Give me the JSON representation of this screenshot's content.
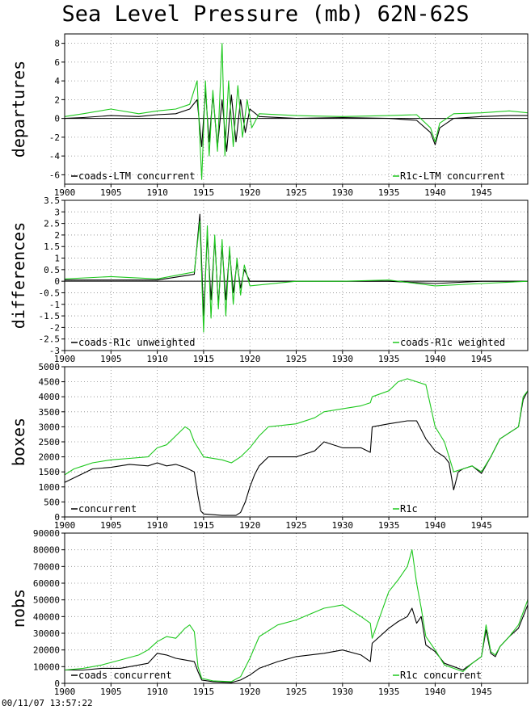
{
  "title": "Sea Level Pressure (mb) 62N-62S",
  "timestamp": "00/11/07 13:57:22",
  "colors": {
    "black": "#000000",
    "green": "#1ec81e",
    "grid": "#888888"
  },
  "chart_data": [
    {
      "type": "line",
      "ylabel": "departures",
      "xlim": [
        1900,
        1950
      ],
      "ylim": [
        -7,
        9
      ],
      "yticks": [
        -6,
        -4,
        -2,
        0,
        2,
        4,
        6,
        8
      ],
      "ytick_labels": [
        "-6",
        "-4",
        "-2",
        "0",
        "2",
        "4",
        "6",
        "8"
      ],
      "xticks": [
        1900,
        1905,
        1910,
        1915,
        1920,
        1925,
        1930,
        1935,
        1940,
        1945
      ],
      "grid": true,
      "zero_line": true,
      "legend": [
        {
          "text": "coads-LTM concurrent",
          "position": "bottom-left",
          "color": "#000000"
        },
        {
          "text": "R1c-LTM concurrent",
          "position": "bottom-right",
          "color": "#1ec81e"
        }
      ],
      "series": [
        {
          "name": "coads-LTM concurrent",
          "color": "#000000",
          "x": [
            1900,
            1902,
            1905,
            1908,
            1910,
            1912,
            1913.5,
            1914.3,
            1914.8,
            1915.2,
            1915.6,
            1916.0,
            1916.5,
            1917.0,
            1917.5,
            1918.0,
            1918.5,
            1919.0,
            1919.5,
            1920.0,
            1921,
            1925,
            1930,
            1935,
            1938,
            1939.5,
            1940.0,
            1940.5,
            1942,
            1945,
            1948,
            1950
          ],
          "y": [
            0,
            0.1,
            0.3,
            0.2,
            0.4,
            0.5,
            1.0,
            2.0,
            -3.0,
            3.0,
            -2.5,
            2.5,
            -3.0,
            2.0,
            -3.5,
            2.5,
            -2.5,
            2.0,
            -1.5,
            1.0,
            0.2,
            0.0,
            0.1,
            0.0,
            -0.2,
            -1.5,
            -2.8,
            -1.0,
            0.0,
            0.2,
            0.3,
            0.3
          ]
        },
        {
          "name": "R1c-LTM concurrent",
          "color": "#1ec81e",
          "x": [
            1900,
            1902,
            1905,
            1908,
            1910,
            1912,
            1913.5,
            1914.3,
            1914.8,
            1915.2,
            1915.6,
            1916.0,
            1916.5,
            1917.0,
            1917.3,
            1917.7,
            1918.2,
            1918.7,
            1919.2,
            1919.7,
            1920.2,
            1921,
            1925,
            1930,
            1935,
            1938,
            1939.5,
            1940.0,
            1940.5,
            1942,
            1945,
            1948,
            1950
          ],
          "y": [
            0.2,
            0.5,
            1.0,
            0.5,
            0.8,
            1.0,
            1.5,
            4.0,
            -6.5,
            4.0,
            -4.0,
            3.0,
            -3.5,
            8.0,
            -4.0,
            4.0,
            -3.0,
            3.5,
            -2.0,
            2.0,
            -1.0,
            0.5,
            0.3,
            0.2,
            0.3,
            0.4,
            -1.0,
            -2.5,
            -0.5,
            0.5,
            0.6,
            0.8,
            0.6
          ]
        }
      ]
    },
    {
      "type": "line",
      "ylabel": "differences",
      "xlim": [
        1900,
        1950
      ],
      "ylim": [
        -3,
        3.5
      ],
      "yticks": [
        -3,
        -2.5,
        -2,
        -1.5,
        -1,
        -0.5,
        0,
        0.5,
        1,
        1.5,
        2,
        2.5,
        3,
        3.5
      ],
      "ytick_labels": [
        "-3",
        "-2.5",
        "-2",
        "-1.5",
        "-1",
        "-0.5",
        "0",
        "0.5",
        "1",
        "1.5",
        "2",
        "2.5",
        "3",
        "3.5"
      ],
      "xticks": [
        1900,
        1905,
        1910,
        1915,
        1920,
        1925,
        1930,
        1935,
        1940,
        1945
      ],
      "grid": true,
      "zero_line": true,
      "legend": [
        {
          "text": "coads-R1c unweighted",
          "position": "bottom-left",
          "color": "#000000"
        },
        {
          "text": "coads-R1c weighted",
          "position": "bottom-right",
          "color": "#1ec81e"
        }
      ],
      "series": [
        {
          "name": "coads-R1c unweighted",
          "color": "#000000",
          "x": [
            1900,
            1905,
            1910,
            1914.0,
            1914.6,
            1915.0,
            1915.4,
            1915.8,
            1916.2,
            1916.6,
            1917.0,
            1917.4,
            1917.8,
            1918.2,
            1918.6,
            1919.0,
            1919.4,
            1920,
            1925,
            1930,
            1935,
            1940,
            1945,
            1950
          ],
          "y": [
            0.05,
            0.05,
            0.05,
            0.3,
            2.9,
            -1.5,
            2.0,
            -0.8,
            1.8,
            -1.0,
            1.5,
            -0.8,
            1.3,
            -0.5,
            0.8,
            -0.3,
            0.5,
            0.0,
            0.0,
            0.0,
            0.0,
            -0.1,
            0.0,
            0.0
          ]
        },
        {
          "name": "coads-R1c weighted",
          "color": "#1ec81e",
          "x": [
            1900,
            1905,
            1910,
            1914.0,
            1914.6,
            1915.0,
            1915.4,
            1915.8,
            1916.2,
            1916.6,
            1917.0,
            1917.4,
            1917.8,
            1918.2,
            1918.6,
            1919.0,
            1919.4,
            1920,
            1925,
            1930,
            1935,
            1938,
            1940,
            1945,
            1950
          ],
          "y": [
            0.1,
            0.2,
            0.1,
            0.4,
            2.6,
            -2.2,
            2.4,
            -1.6,
            2.0,
            -1.2,
            1.8,
            -1.5,
            1.5,
            -1.0,
            1.0,
            -0.6,
            0.7,
            -0.2,
            0.0,
            0.0,
            0.05,
            -0.1,
            -0.2,
            -0.1,
            0.0
          ]
        }
      ]
    },
    {
      "type": "line",
      "ylabel": "boxes",
      "xlim": [
        1900,
        1950
      ],
      "ylim": [
        0,
        5000
      ],
      "yticks": [
        0,
        500,
        1000,
        1500,
        2000,
        2500,
        3000,
        3500,
        4000,
        4500,
        5000
      ],
      "ytick_labels": [
        "0",
        "500",
        "1000",
        "1500",
        "2000",
        "2500",
        "3000",
        "3500",
        "4000",
        "4500",
        "5000"
      ],
      "xticks": [
        1900,
        1905,
        1910,
        1915,
        1920,
        1925,
        1930,
        1935,
        1940,
        1945
      ],
      "grid": true,
      "zero_line": false,
      "legend": [
        {
          "text": "concurrent",
          "position": "bottom-left",
          "color": "#000000"
        },
        {
          "text": "R1c",
          "position": "bottom-right",
          "color": "#1ec81e"
        }
      ],
      "series": [
        {
          "name": "concurrent",
          "color": "#000000",
          "x": [
            1900,
            1901,
            1902,
            1903,
            1905,
            1907,
            1909,
            1910,
            1911,
            1912,
            1913,
            1914,
            1914.4,
            1914.7,
            1915,
            1917,
            1918.5,
            1919,
            1919.5,
            1920,
            1920.5,
            1921,
            1922,
            1925,
            1927,
            1928,
            1930,
            1932,
            1933,
            1933.2,
            1935,
            1937,
            1938,
            1939,
            1940,
            1941,
            1941.5,
            1942,
            1942.5,
            1943,
            1944,
            1945,
            1946,
            1947,
            1948,
            1949,
            1949.5,
            1950
          ],
          "y": [
            1150,
            1300,
            1450,
            1600,
            1650,
            1750,
            1700,
            1800,
            1700,
            1750,
            1650,
            1500,
            700,
            200,
            100,
            50,
            50,
            150,
            500,
            1000,
            1400,
            1700,
            2000,
            2000,
            2200,
            2500,
            2300,
            2300,
            2150,
            3000,
            3100,
            3200,
            3200,
            2600,
            2200,
            2000,
            1800,
            900,
            1500,
            1600,
            1700,
            1450,
            2000,
            2600,
            2800,
            3000,
            3900,
            4200
          ]
        },
        {
          "name": "R1c",
          "color": "#1ec81e",
          "x": [
            1900,
            1901,
            1902,
            1903,
            1905,
            1907,
            1909,
            1910,
            1911,
            1912,
            1913,
            1913.5,
            1914,
            1915,
            1917,
            1918,
            1919,
            1920,
            1921,
            1922,
            1925,
            1927,
            1928,
            1930,
            1932,
            1933,
            1933.2,
            1935,
            1936,
            1937,
            1938,
            1939,
            1939.5,
            1940,
            1941,
            1942,
            1943,
            1944,
            1945,
            1946,
            1947,
            1948,
            1949,
            1949.5,
            1950
          ],
          "y": [
            1400,
            1600,
            1700,
            1800,
            1900,
            1950,
            2000,
            2300,
            2400,
            2700,
            3000,
            2900,
            2500,
            2000,
            1900,
            1800,
            2000,
            2300,
            2700,
            3000,
            3100,
            3300,
            3500,
            3600,
            3700,
            3800,
            4000,
            4200,
            4500,
            4600,
            4500,
            4400,
            3700,
            3000,
            2500,
            1500,
            1600,
            1700,
            1500,
            2000,
            2600,
            2800,
            3000,
            4000,
            4200
          ]
        }
      ]
    },
    {
      "type": "line",
      "ylabel": "nobs",
      "xlim": [
        1900,
        1950
      ],
      "ylim": [
        0,
        90000
      ],
      "yticks": [
        0,
        10000,
        20000,
        30000,
        40000,
        50000,
        60000,
        70000,
        80000,
        90000
      ],
      "ytick_labels": [
        "0",
        "10000",
        "20000",
        "30000",
        "40000",
        "50000",
        "60000",
        "70000",
        "80000",
        "90000"
      ],
      "xticks": [
        1900,
        1905,
        1910,
        1915,
        1920,
        1925,
        1930,
        1935,
        1940,
        1945
      ],
      "grid": true,
      "zero_line": false,
      "legend": [
        {
          "text": "coads concurrent",
          "position": "bottom-left",
          "color": "#000000"
        },
        {
          "text": "R1c concurrent",
          "position": "bottom-right",
          "color": "#1ec81e"
        }
      ],
      "series": [
        {
          "name": "coads concurrent",
          "color": "#000000",
          "x": [
            1900,
            1902,
            1904,
            1906,
            1908,
            1909,
            1910,
            1911,
            1912,
            1913,
            1914,
            1914.4,
            1914.8,
            1916,
            1918,
            1919,
            1920,
            1921,
            1923,
            1925,
            1928,
            1930,
            1932,
            1933,
            1933.2,
            1935,
            1936,
            1937,
            1937.5,
            1938,
            1938.5,
            1939,
            1940,
            1941,
            1942,
            1943,
            1944,
            1945,
            1945.5,
            1946,
            1946.5,
            1947,
            1948,
            1949,
            1950
          ],
          "y": [
            8000,
            8000,
            9000,
            9000,
            11000,
            12000,
            18000,
            17000,
            15000,
            14000,
            13000,
            7000,
            2000,
            1000,
            500,
            2000,
            5000,
            9000,
            13000,
            16000,
            18000,
            20000,
            17000,
            13000,
            24000,
            33000,
            37000,
            40000,
            45000,
            36000,
            40000,
            23000,
            19000,
            12000,
            10000,
            8000,
            12000,
            16000,
            32000,
            18000,
            16000,
            22000,
            28000,
            33000,
            47000
          ]
        },
        {
          "name": "R1c concurrent",
          "color": "#1ec81e",
          "x": [
            1900,
            1902,
            1904,
            1906,
            1908,
            1909,
            1910,
            1911,
            1912,
            1913,
            1913.5,
            1914,
            1914.4,
            1914.8,
            1916,
            1918,
            1919,
            1920,
            1921,
            1923,
            1925,
            1928,
            1930,
            1932,
            1933,
            1933.2,
            1935,
            1936,
            1937,
            1937.5,
            1938,
            1938.5,
            1939,
            1940,
            1941,
            1942,
            1943,
            1944,
            1945,
            1945.5,
            1946,
            1946.5,
            1947,
            1948,
            1949,
            1950
          ],
          "y": [
            8000,
            9000,
            11000,
            14000,
            17000,
            20000,
            25000,
            28000,
            27000,
            33000,
            35000,
            31000,
            10000,
            3000,
            1500,
            1000,
            4000,
            15000,
            28000,
            35000,
            38000,
            45000,
            47000,
            40000,
            36000,
            27000,
            55000,
            62000,
            70000,
            80000,
            60000,
            45000,
            28000,
            20000,
            11000,
            9000,
            7000,
            12000,
            16000,
            35000,
            19000,
            17000,
            22000,
            28000,
            35000,
            50000
          ]
        }
      ]
    }
  ]
}
